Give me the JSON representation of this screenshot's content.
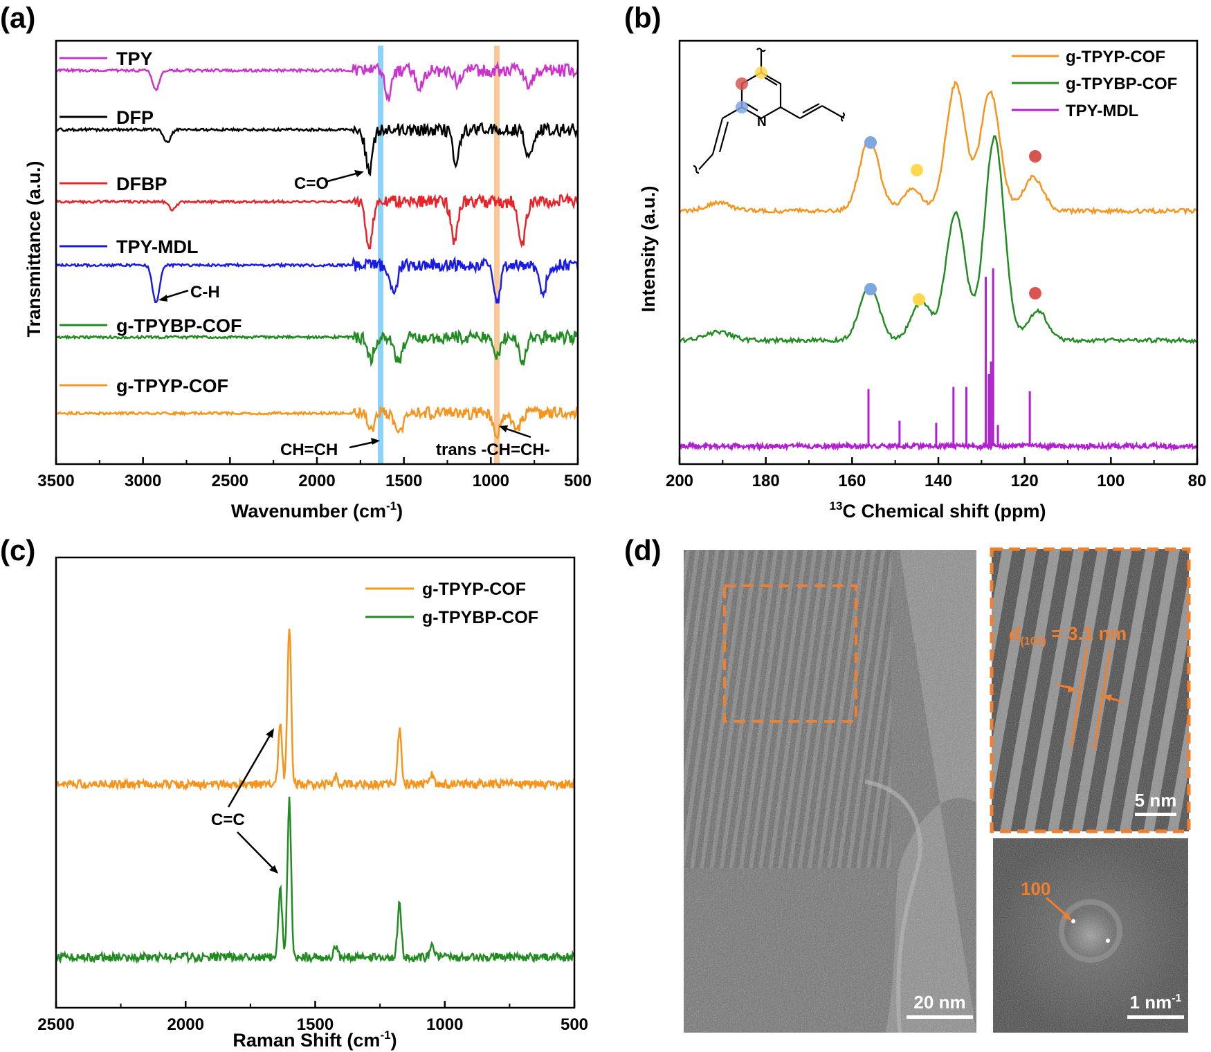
{
  "panel_labels": [
    "(a)",
    "(b)",
    "(c)",
    "(d)"
  ],
  "colors": {
    "TPY": "#cc33cc",
    "DFP": "#000000",
    "DFBP": "#e8232a",
    "TPY-MDL": "#1a1ae6",
    "g-TPYBP-COF": "#228b22",
    "g-TPYP-COF": "#f7941d",
    "TPY-MDL-nmr": "#b020d0",
    "highlight_blue": "#8fd3f4",
    "highlight_orange": "#f7c89a",
    "dot_blue": "#7ea6e0",
    "dot_yellow": "#ffd84d",
    "dot_red": "#d9534f",
    "tem_accent": "#f07f2e"
  },
  "chart_data": [
    {
      "panel": "(a)",
      "type": "line",
      "xlabel": "Wavenumber (cm",
      "xlabel_sup": "-1",
      "xlabel_end": ")",
      "ylabel": "Transmittance (a.u.)",
      "xlim": [
        3500,
        500
      ],
      "xticks": [
        3500,
        3000,
        2500,
        2000,
        1500,
        1000,
        500
      ],
      "series": [
        {
          "name": "TPY",
          "baseline": 0.93,
          "peaks": [
            [
              2925,
              0.045
            ],
            [
              1590,
              0.06
            ],
            [
              1410,
              0.035
            ],
            [
              1190,
              0.03
            ],
            [
              780,
              0.04
            ]
          ]
        },
        {
          "name": "DFP",
          "baseline": 0.79,
          "peaks": [
            [
              2860,
              0.03
            ],
            [
              1700,
              0.1
            ],
            [
              1200,
              0.08
            ],
            [
              780,
              0.07
            ]
          ]
        },
        {
          "name": "DFBP",
          "baseline": 0.62,
          "peaks": [
            [
              2830,
              0.02
            ],
            [
              1700,
              0.1
            ],
            [
              1210,
              0.09
            ],
            [
              820,
              0.1
            ]
          ]
        },
        {
          "name": "TPY-MDL",
          "baseline": 0.47,
          "peaks": [
            [
              2925,
              0.09
            ],
            [
              1560,
              0.07
            ],
            [
              965,
              0.09
            ],
            [
              700,
              0.07
            ]
          ]
        },
        {
          "name": "g-TPYBP-COF",
          "baseline": 0.3,
          "peaks": [
            [
              1690,
              0.05
            ],
            [
              1530,
              0.06
            ],
            [
              965,
              0.05
            ],
            [
              820,
              0.06
            ]
          ]
        },
        {
          "name": "g-TPYP-COF",
          "baseline": 0.12,
          "peaks": [
            [
              1690,
              0.04
            ],
            [
              1530,
              0.05
            ],
            [
              965,
              0.05
            ],
            [
              850,
              0.04
            ]
          ]
        }
      ],
      "highlight_bands": [
        1630,
        965
      ],
      "annotations": [
        "C=O",
        "C-H",
        "CH=CH",
        "trans -CH=CH-"
      ]
    },
    {
      "panel": "(b)",
      "type": "line",
      "xlabel_sup": "13",
      "xlabel": "C Chemical shift (ppm)",
      "ylabel": "Intensity (a.u.)",
      "xlim": [
        200,
        80
      ],
      "xticks": [
        200,
        180,
        160,
        140,
        120,
        100,
        80
      ],
      "series": [
        {
          "name": "g-TPYP-COF",
          "peaks": [
            [
              156,
              0.17
            ],
            [
              146,
              0.05
            ],
            [
              136,
              0.3
            ],
            [
              128,
              0.28
            ],
            [
              118,
              0.08
            ]
          ]
        },
        {
          "name": "g-TPYBP-COF",
          "peaks": [
            [
              156,
              0.13
            ],
            [
              144,
              0.09
            ],
            [
              136,
              0.3
            ],
            [
              127,
              0.48
            ],
            [
              117,
              0.07
            ]
          ]
        },
        {
          "name": "TPY-MDL",
          "sticks": [
            [
              156.2,
              0.135
            ],
            [
              149,
              0.06
            ],
            [
              140.5,
              0.055
            ],
            [
              136.5,
              0.14
            ],
            [
              133.5,
              0.14
            ],
            [
              129,
              0.4
            ],
            [
              128.3,
              0.17
            ],
            [
              127.8,
              0.2
            ],
            [
              127.3,
              0.42
            ],
            [
              126.2,
              0.05
            ],
            [
              118.8,
              0.13
            ]
          ]
        }
      ]
    },
    {
      "panel": "(c)",
      "type": "line",
      "xlabel": "Raman Shift (cm",
      "xlabel_sup": "-1",
      "xlabel_end": ")",
      "xlim": [
        2500,
        500
      ],
      "xticks": [
        2500,
        2000,
        1500,
        1000,
        500
      ],
      "series": [
        {
          "name": "g-TPYP-COF",
          "peaks": [
            [
              1635,
              0.09
            ],
            [
              1600,
              0.23
            ],
            [
              1175,
              0.08
            ],
            [
              1420,
              0.015
            ],
            [
              1050,
              0.015
            ]
          ]
        },
        {
          "name": "g-TPYBP-COF",
          "peaks": [
            [
              1635,
              0.1
            ],
            [
              1600,
              0.23
            ],
            [
              1175,
              0.08
            ],
            [
              1420,
              0.015
            ],
            [
              1050,
              0.015
            ]
          ]
        }
      ],
      "annotations": [
        "C=C"
      ]
    }
  ],
  "tem": {
    "scale_main": "20 nm",
    "scale_zoom": "5 nm",
    "scale_fft": "1 nm",
    "scale_fft_sup": "-1",
    "d_italic": "d",
    "d_sub": "(100)",
    "d_value": " = 3.1 nm",
    "fft_label": "100"
  }
}
